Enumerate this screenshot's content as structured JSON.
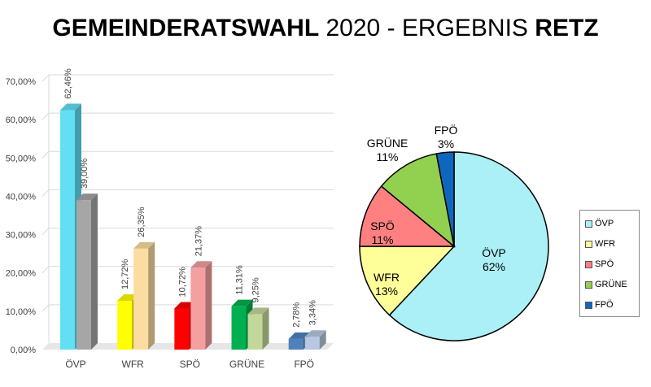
{
  "title": {
    "part1": "GEMEINDERATSWAHL",
    "part2": "2020 - ERGEBNIS",
    "part3": "RETZ"
  },
  "chart_data": [
    {
      "type": "bar",
      "categories": [
        "ÖVP",
        "WFR",
        "SPÖ",
        "GRÜNE",
        "FPÖ"
      ],
      "series": [
        {
          "values": [
            62.46,
            12.72,
            10.72,
            11.31,
            2.78
          ],
          "labels": [
            "62,46%",
            "12,72%",
            "10,72%",
            "11,31%",
            "2,78%"
          ]
        },
        {
          "values": [
            39.0,
            26.35,
            21.37,
            9.25,
            3.34
          ],
          "labels": [
            "39,00%",
            "26,35%",
            "21,37%",
            "9,25%",
            "3,34%"
          ]
        }
      ],
      "ylim": [
        0,
        70
      ],
      "yticks": [
        0,
        10,
        20,
        30,
        40,
        50,
        60,
        70
      ],
      "ytick_labels": [
        "0,00%",
        "10,00%",
        "20,00%",
        "30,00%",
        "40,00%",
        "50,00%",
        "60,00%",
        "70,00%"
      ],
      "grid": true,
      "colors": {
        "current": [
          "#62dff5",
          "#ffff00",
          "#ff0000",
          "#00b050",
          "#4f81bd"
        ],
        "previous": [
          "#a6a6a6",
          "#fcdca0",
          "#f4a0a0",
          "#c4d79b",
          "#b8c8e2"
        ]
      }
    },
    {
      "type": "pie",
      "labels": [
        "ÖVP",
        "WFR",
        "SPÖ",
        "GRÜNE",
        "FPÖ"
      ],
      "values": [
        62,
        13,
        11,
        11,
        3
      ],
      "value_labels": [
        "62%",
        "13%",
        "11%",
        "11%",
        "3%"
      ],
      "colors": [
        "#aaf0f6",
        "#ffff99",
        "#ff8080",
        "#92d050",
        "#0f66bf"
      ],
      "legend_position": "right"
    }
  ]
}
